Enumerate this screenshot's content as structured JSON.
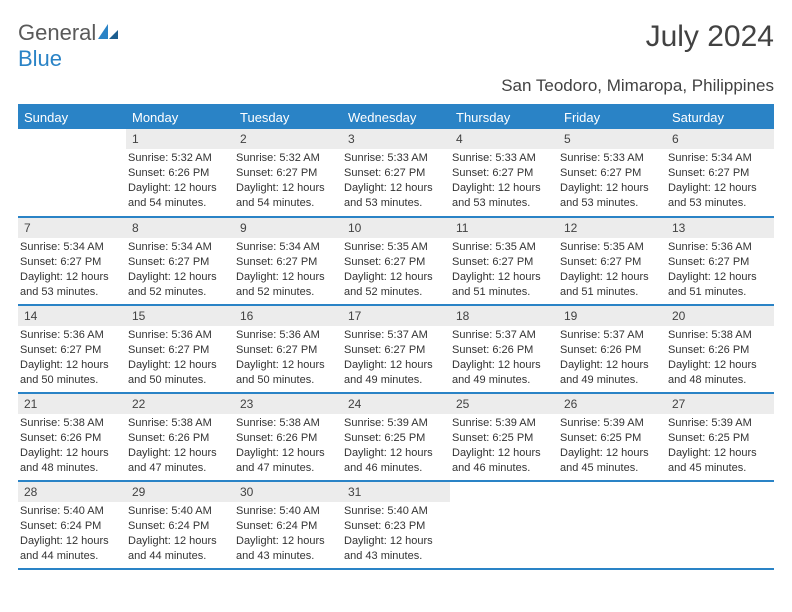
{
  "logo": {
    "general": "General",
    "blue": "Blue"
  },
  "title": "July 2024",
  "location": "San Teodoro, Mimaropa, Philippines",
  "colors": {
    "header_bg": "#2a83c6",
    "header_text": "#ffffff",
    "daynum_bg": "#ececec",
    "body_text": "#333333",
    "rule": "#2a83c6"
  },
  "day_headers": [
    "Sunday",
    "Monday",
    "Tuesday",
    "Wednesday",
    "Thursday",
    "Friday",
    "Saturday"
  ],
  "grid_layout": {
    "rows": 5,
    "cols": 7,
    "first_day_col": 1,
    "days_in_month": 31
  },
  "days": {
    "1": {
      "sunrise": "Sunrise: 5:32 AM",
      "sunset": "Sunset: 6:26 PM",
      "daylight": "Daylight: 12 hours and 54 minutes."
    },
    "2": {
      "sunrise": "Sunrise: 5:32 AM",
      "sunset": "Sunset: 6:27 PM",
      "daylight": "Daylight: 12 hours and 54 minutes."
    },
    "3": {
      "sunrise": "Sunrise: 5:33 AM",
      "sunset": "Sunset: 6:27 PM",
      "daylight": "Daylight: 12 hours and 53 minutes."
    },
    "4": {
      "sunrise": "Sunrise: 5:33 AM",
      "sunset": "Sunset: 6:27 PM",
      "daylight": "Daylight: 12 hours and 53 minutes."
    },
    "5": {
      "sunrise": "Sunrise: 5:33 AM",
      "sunset": "Sunset: 6:27 PM",
      "daylight": "Daylight: 12 hours and 53 minutes."
    },
    "6": {
      "sunrise": "Sunrise: 5:34 AM",
      "sunset": "Sunset: 6:27 PM",
      "daylight": "Daylight: 12 hours and 53 minutes."
    },
    "7": {
      "sunrise": "Sunrise: 5:34 AM",
      "sunset": "Sunset: 6:27 PM",
      "daylight": "Daylight: 12 hours and 53 minutes."
    },
    "8": {
      "sunrise": "Sunrise: 5:34 AM",
      "sunset": "Sunset: 6:27 PM",
      "daylight": "Daylight: 12 hours and 52 minutes."
    },
    "9": {
      "sunrise": "Sunrise: 5:34 AM",
      "sunset": "Sunset: 6:27 PM",
      "daylight": "Daylight: 12 hours and 52 minutes."
    },
    "10": {
      "sunrise": "Sunrise: 5:35 AM",
      "sunset": "Sunset: 6:27 PM",
      "daylight": "Daylight: 12 hours and 52 minutes."
    },
    "11": {
      "sunrise": "Sunrise: 5:35 AM",
      "sunset": "Sunset: 6:27 PM",
      "daylight": "Daylight: 12 hours and 51 minutes."
    },
    "12": {
      "sunrise": "Sunrise: 5:35 AM",
      "sunset": "Sunset: 6:27 PM",
      "daylight": "Daylight: 12 hours and 51 minutes."
    },
    "13": {
      "sunrise": "Sunrise: 5:36 AM",
      "sunset": "Sunset: 6:27 PM",
      "daylight": "Daylight: 12 hours and 51 minutes."
    },
    "14": {
      "sunrise": "Sunrise: 5:36 AM",
      "sunset": "Sunset: 6:27 PM",
      "daylight": "Daylight: 12 hours and 50 minutes."
    },
    "15": {
      "sunrise": "Sunrise: 5:36 AM",
      "sunset": "Sunset: 6:27 PM",
      "daylight": "Daylight: 12 hours and 50 minutes."
    },
    "16": {
      "sunrise": "Sunrise: 5:36 AM",
      "sunset": "Sunset: 6:27 PM",
      "daylight": "Daylight: 12 hours and 50 minutes."
    },
    "17": {
      "sunrise": "Sunrise: 5:37 AM",
      "sunset": "Sunset: 6:27 PM",
      "daylight": "Daylight: 12 hours and 49 minutes."
    },
    "18": {
      "sunrise": "Sunrise: 5:37 AM",
      "sunset": "Sunset: 6:26 PM",
      "daylight": "Daylight: 12 hours and 49 minutes."
    },
    "19": {
      "sunrise": "Sunrise: 5:37 AM",
      "sunset": "Sunset: 6:26 PM",
      "daylight": "Daylight: 12 hours and 49 minutes."
    },
    "20": {
      "sunrise": "Sunrise: 5:38 AM",
      "sunset": "Sunset: 6:26 PM",
      "daylight": "Daylight: 12 hours and 48 minutes."
    },
    "21": {
      "sunrise": "Sunrise: 5:38 AM",
      "sunset": "Sunset: 6:26 PM",
      "daylight": "Daylight: 12 hours and 48 minutes."
    },
    "22": {
      "sunrise": "Sunrise: 5:38 AM",
      "sunset": "Sunset: 6:26 PM",
      "daylight": "Daylight: 12 hours and 47 minutes."
    },
    "23": {
      "sunrise": "Sunrise: 5:38 AM",
      "sunset": "Sunset: 6:26 PM",
      "daylight": "Daylight: 12 hours and 47 minutes."
    },
    "24": {
      "sunrise": "Sunrise: 5:39 AM",
      "sunset": "Sunset: 6:25 PM",
      "daylight": "Daylight: 12 hours and 46 minutes."
    },
    "25": {
      "sunrise": "Sunrise: 5:39 AM",
      "sunset": "Sunset: 6:25 PM",
      "daylight": "Daylight: 12 hours and 46 minutes."
    },
    "26": {
      "sunrise": "Sunrise: 5:39 AM",
      "sunset": "Sunset: 6:25 PM",
      "daylight": "Daylight: 12 hours and 45 minutes."
    },
    "27": {
      "sunrise": "Sunrise: 5:39 AM",
      "sunset": "Sunset: 6:25 PM",
      "daylight": "Daylight: 12 hours and 45 minutes."
    },
    "28": {
      "sunrise": "Sunrise: 5:40 AM",
      "sunset": "Sunset: 6:24 PM",
      "daylight": "Daylight: 12 hours and 44 minutes."
    },
    "29": {
      "sunrise": "Sunrise: 5:40 AM",
      "sunset": "Sunset: 6:24 PM",
      "daylight": "Daylight: 12 hours and 44 minutes."
    },
    "30": {
      "sunrise": "Sunrise: 5:40 AM",
      "sunset": "Sunset: 6:24 PM",
      "daylight": "Daylight: 12 hours and 43 minutes."
    },
    "31": {
      "sunrise": "Sunrise: 5:40 AM",
      "sunset": "Sunset: 6:23 PM",
      "daylight": "Daylight: 12 hours and 43 minutes."
    }
  }
}
